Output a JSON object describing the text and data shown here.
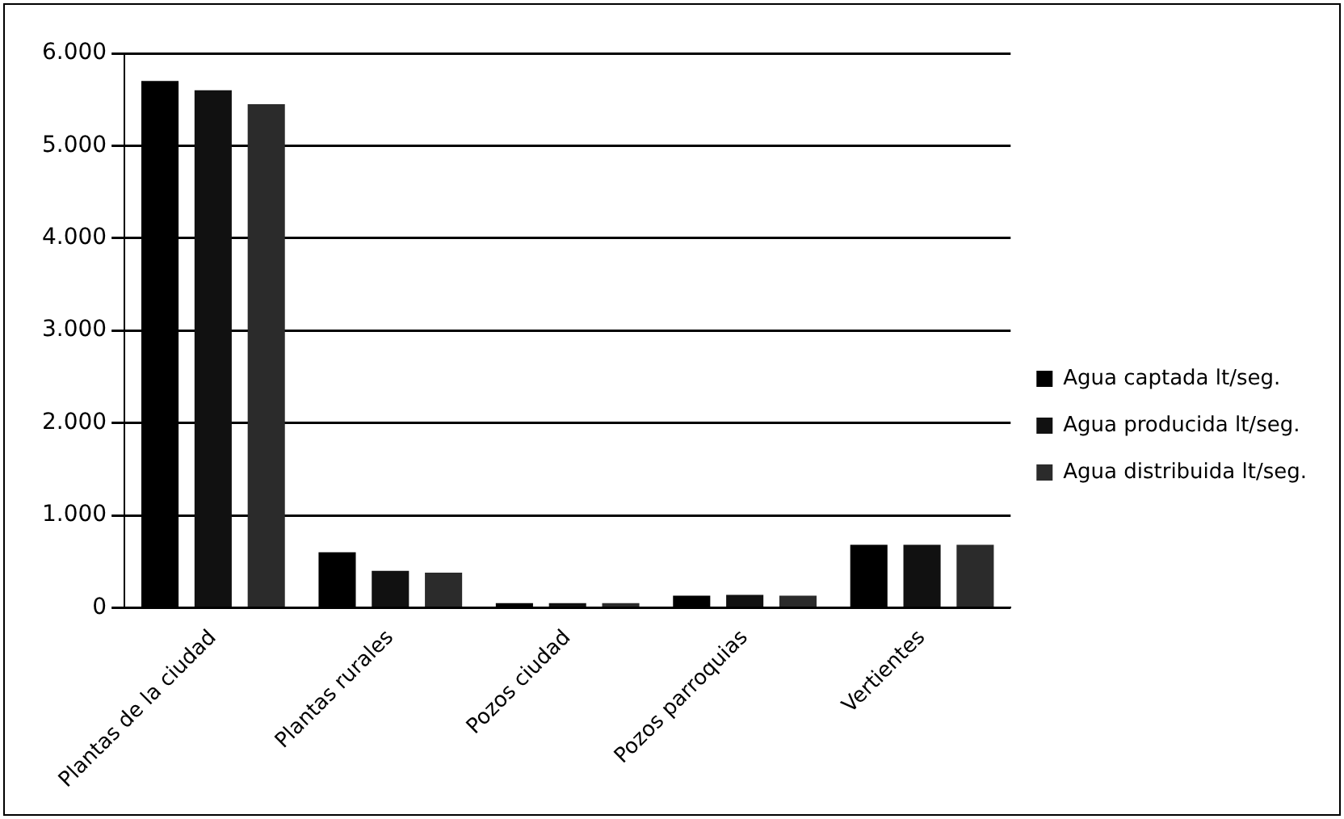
{
  "chart_data": {
    "type": "bar",
    "categories": [
      "Plantas de la ciudad",
      "Plantas rurales",
      "Pozos ciudad",
      "Pozos parroquias",
      "Vertientes"
    ],
    "series": [
      {
        "name": "Agua captada lt/seg.",
        "color": "#000000",
        "values": [
          5700,
          600,
          50,
          130,
          680
        ]
      },
      {
        "name": "Agua producida lt/seg.",
        "color": "#111111",
        "values": [
          5600,
          400,
          50,
          140,
          680
        ]
      },
      {
        "name": "Agua distribuida lt/seg.",
        "color": "#2b2b2b",
        "values": [
          5450,
          380,
          50,
          130,
          680
        ]
      }
    ],
    "ylim": [
      0,
      6000
    ],
    "yticks": [
      {
        "value": 0,
        "label": "0"
      },
      {
        "value": 1000,
        "label": "1.000"
      },
      {
        "value": 2000,
        "label": "2.000"
      },
      {
        "value": 3000,
        "label": "3.000"
      },
      {
        "value": 4000,
        "label": "4.000"
      },
      {
        "value": 5000,
        "label": "5.000"
      },
      {
        "value": 6000,
        "label": "6.000"
      }
    ],
    "grid": "y",
    "legend": "right"
  }
}
